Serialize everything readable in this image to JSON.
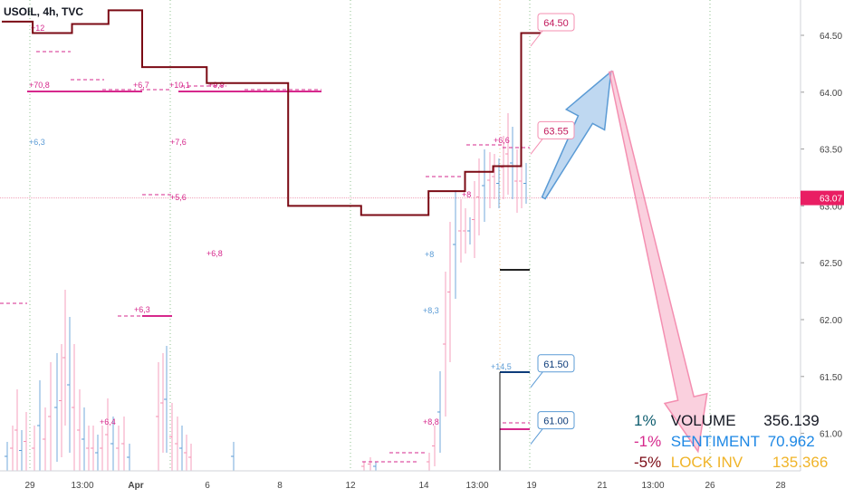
{
  "header": {
    "symbol": "USOIL, 4h, TVC"
  },
  "colors": {
    "dark_red": "#7b0a14",
    "magenta": "#d6288c",
    "pink": "#f48fb1",
    "blue": "#5b9bd5",
    "navy": "#0d3c7a",
    "grid": "#e4e6eb",
    "axis_text": "#444444",
    "price_line": "#f0a0b8"
  },
  "chart_data": {
    "type": "line",
    "title": "",
    "y_axis": {
      "min": 60.65,
      "max": 64.72,
      "ticks": [
        "64.50",
        "64.00",
        "63.50",
        "63.00",
        "62.50",
        "62.00",
        "61.50",
        "61.00"
      ]
    },
    "x_axis": {
      "ticks": [
        "29",
        "13:00",
        "Apr",
        "6",
        "8",
        "12",
        "14",
        "13:00",
        "19",
        "21",
        "13:00",
        "26",
        "28"
      ]
    },
    "current_price": {
      "label": "63.07",
      "value": 63.07
    },
    "step_line": {
      "name": "",
      "color": "#7b0a14",
      "points": [
        [
          0,
          64.62
        ],
        [
          1.1,
          64.52
        ],
        [
          2.5,
          64.6
        ],
        [
          3.8,
          64.72
        ],
        [
          5,
          64.22
        ],
        [
          6.3,
          64.22
        ],
        [
          7.3,
          64.08
        ],
        [
          10.2,
          63.0
        ],
        [
          12.8,
          62.92
        ],
        [
          15.2,
          63.13
        ],
        [
          16.5,
          63.3
        ],
        [
          17.5,
          63.35
        ],
        [
          18.5,
          64.52
        ],
        [
          19.2,
          64.52
        ]
      ]
    },
    "level_tags": [
      {
        "label": "64.50",
        "value": 64.5,
        "kind": "resistance"
      },
      {
        "label": "63.55",
        "value": 63.55,
        "kind": "resistance"
      },
      {
        "label": "61.50",
        "value": 61.5,
        "kind": "support"
      },
      {
        "label": "61.00",
        "value": 61.0,
        "kind": "support"
      }
    ],
    "annotations": [
      "+12",
      "+70,8",
      "+6,7",
      "+10,1",
      "+9,9",
      "+6,3",
      "+7,6",
      "+5,6",
      "+6,8",
      "+6,3",
      "+6,4",
      "+8",
      "+8,3",
      "+14,5",
      "+8,8",
      "+8",
      "+6,6"
    ],
    "projection": [
      {
        "direction": "up",
        "from": [
          19.3,
          63.07
        ],
        "to": [
          21.7,
          64.18
        ]
      },
      {
        "direction": "down",
        "from": [
          21.7,
          64.18
        ],
        "to": [
          24.8,
          61.0
        ]
      }
    ]
  },
  "metrics": [
    {
      "pct": "1%",
      "name": "VOLUME",
      "value": "356.139",
      "pct_color": "#0d5c6e",
      "name_color": "#131722",
      "value_color": "#131722"
    },
    {
      "pct": "-1%",
      "name": "SENTIMENT",
      "value": "70.962",
      "pct_color": "#d6288c",
      "name_color": "#1e88e5",
      "value_color": "#1e88e5"
    },
    {
      "pct": "-5%",
      "name": "LOCK INV",
      "value": "135.366",
      "pct_color": "#7b0a14",
      "name_color": "#f0b429",
      "value_color": "#f0b429"
    }
  ]
}
